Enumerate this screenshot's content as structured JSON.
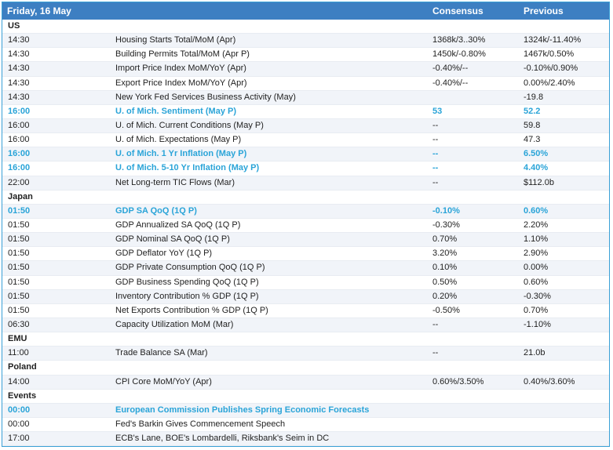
{
  "header": {
    "date": "Friday, 16 May",
    "consensus_label": "Consensus",
    "previous_label": "Previous"
  },
  "rows": [
    {
      "type": "section",
      "label": "US"
    },
    {
      "type": "item",
      "time": "14:30",
      "event": "Housing Starts Total/MoM (Apr)",
      "consensus": "1368k/3..30%",
      "previous": "1324k/-11.40%",
      "highlight": false
    },
    {
      "type": "item",
      "time": "14:30",
      "event": "Building Permits Total/MoM (Apr P)",
      "consensus": "1450k/-0.80%",
      "previous": "1467k/0.50%",
      "highlight": false
    },
    {
      "type": "item",
      "time": "14:30",
      "event": "Import Price Index MoM/YoY (Apr)",
      "consensus": "-0.40%/--",
      "previous": "-0.10%/0.90%",
      "highlight": false
    },
    {
      "type": "item",
      "time": "14:30",
      "event": "Export Price Index MoM/YoY (Apr)",
      "consensus": "-0.40%/--",
      "previous": "0.00%/2.40%",
      "highlight": false
    },
    {
      "type": "item",
      "time": "14:30",
      "event": "New York Fed Services Business Activity (May)",
      "consensus": "",
      "previous": "-19.8",
      "highlight": false
    },
    {
      "type": "item",
      "time": "16:00",
      "event": "U. of Mich. Sentiment (May P)",
      "consensus": "53",
      "previous": "52.2",
      "highlight": true
    },
    {
      "type": "item",
      "time": "16:00",
      "event": "U. of Mich. Current Conditions (May P)",
      "consensus": "--",
      "previous": "59.8",
      "highlight": false
    },
    {
      "type": "item",
      "time": "16:00",
      "event": "U. of Mich. Expectations (May P)",
      "consensus": "--",
      "previous": "47.3",
      "highlight": false
    },
    {
      "type": "item",
      "time": "16:00",
      "event": "U. of Mich. 1 Yr Inflation (May P)",
      "consensus": "--",
      "previous": "6.50%",
      "highlight": true
    },
    {
      "type": "item",
      "time": "16:00",
      "event": "U. of Mich. 5-10 Yr Inflation (May P)",
      "consensus": "--",
      "previous": "4.40%",
      "highlight": true
    },
    {
      "type": "item",
      "time": "22:00",
      "event": "Net Long-term TIC Flows (Mar)",
      "consensus": "--",
      "previous": "$112.0b",
      "highlight": false
    },
    {
      "type": "section",
      "label": "Japan"
    },
    {
      "type": "item",
      "time": "01:50",
      "event": "GDP SA QoQ (1Q P)",
      "consensus": "-0.10%",
      "previous": "0.60%",
      "highlight": true
    },
    {
      "type": "item",
      "time": "01:50",
      "event": "GDP Annualized SA QoQ (1Q P)",
      "consensus": "-0.30%",
      "previous": "2.20%",
      "highlight": false
    },
    {
      "type": "item",
      "time": "01:50",
      "event": "GDP Nominal SA QoQ (1Q P)",
      "consensus": "0.70%",
      "previous": "1.10%",
      "highlight": false
    },
    {
      "type": "item",
      "time": "01:50",
      "event": "GDP Deflator YoY (1Q P)",
      "consensus": "3.20%",
      "previous": "2.90%",
      "highlight": false
    },
    {
      "type": "item",
      "time": "01:50",
      "event": "GDP Private Consumption QoQ (1Q P)",
      "consensus": "0.10%",
      "previous": "0.00%",
      "highlight": false
    },
    {
      "type": "item",
      "time": "01:50",
      "event": "GDP Business Spending QoQ (1Q P)",
      "consensus": "0.50%",
      "previous": "0.60%",
      "highlight": false
    },
    {
      "type": "item",
      "time": "01:50",
      "event": "Inventory Contribution % GDP (1Q P)",
      "consensus": "0.20%",
      "previous": "-0.30%",
      "highlight": false
    },
    {
      "type": "item",
      "time": "01:50",
      "event": "Net Exports Contribution % GDP (1Q P)",
      "consensus": "-0.50%",
      "previous": "0.70%",
      "highlight": false
    },
    {
      "type": "item",
      "time": "06:30",
      "event": "Capacity Utilization MoM (Mar)",
      "consensus": "--",
      "previous": "-1.10%",
      "highlight": false
    },
    {
      "type": "section",
      "label": "EMU"
    },
    {
      "type": "item",
      "time": "11:00",
      "event": "Trade Balance SA (Mar)",
      "consensus": "--",
      "previous": "21.0b",
      "highlight": false
    },
    {
      "type": "section",
      "label": "Poland"
    },
    {
      "type": "item",
      "time": "14:00",
      "event": "CPI Core MoM/YoY (Apr)",
      "consensus": "0.60%/3.50%",
      "previous": "0.40%/3.60%",
      "highlight": false
    },
    {
      "type": "section",
      "label": "Events"
    },
    {
      "type": "item",
      "time": "00:00",
      "event": "European Commission Publishes Spring Economic Forecasts",
      "consensus": "",
      "previous": "",
      "highlight": true
    },
    {
      "type": "item",
      "time": "00:00",
      "event": "Fed's Barkin Gives Commencement Speech",
      "consensus": "",
      "previous": "",
      "highlight": false
    },
    {
      "type": "item",
      "time": "17:00",
      "event": "ECB's Lane, BOE's Lombardelli, Riksbank's Seim in DC",
      "consensus": "",
      "previous": "",
      "highlight": false
    }
  ]
}
